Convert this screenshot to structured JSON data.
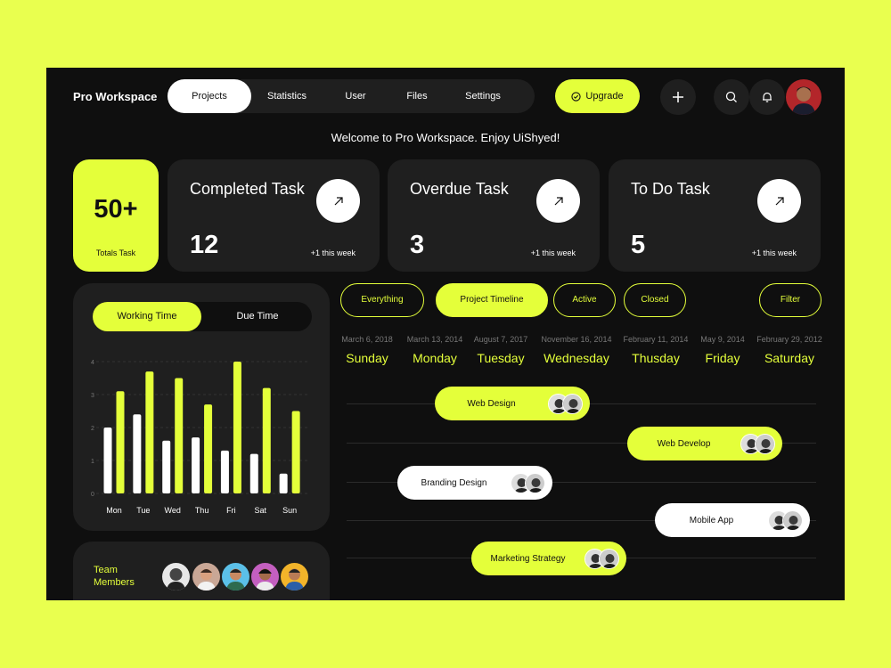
{
  "app": {
    "brand": "Pro Workspace",
    "welcome": "Welcome to Pro Workspace. Enjoy UiShyed!"
  },
  "nav": {
    "items": [
      "Projects",
      "Statistics",
      "User",
      "Files",
      "Settings"
    ],
    "active": "Projects"
  },
  "actions": {
    "upgrade": "Upgrade"
  },
  "summary": {
    "total_value": "50+",
    "total_label": "Totals Task"
  },
  "stats": [
    {
      "title": "Completed Task",
      "value": "12",
      "week": "+1 this week"
    },
    {
      "title": "Overdue Task",
      "value": "3",
      "week": "+1 this week"
    },
    {
      "title": "To Do Task",
      "value": "5",
      "week": "+1 this week"
    }
  ],
  "chart_toggle": {
    "on": "Working Time",
    "off": "Due Time"
  },
  "chart_data": {
    "type": "bar",
    "categories": [
      "Mon",
      "Tue",
      "Wed",
      "Thu",
      "Fri",
      "Sat",
      "Sun"
    ],
    "series": [
      {
        "values": [
          2.0,
          2.4,
          1.6,
          1.7,
          1.3,
          1.2,
          0.6
        ]
      },
      {
        "values": [
          3.1,
          3.7,
          3.5,
          2.7,
          4.0,
          3.2,
          2.5
        ]
      }
    ],
    "ylim": [
      0,
      4
    ],
    "yticks": [
      "0",
      "1",
      "2",
      "3",
      "4"
    ],
    "grid": true,
    "colors": {
      "primary": "#e4ff3a",
      "secondary": "#ffffff"
    }
  },
  "team": {
    "label": "Team Members"
  },
  "filters": [
    "Everything",
    "Project Timeline",
    "Active",
    "Closed",
    "Filter"
  ],
  "active_filter": "Project Timeline",
  "days": [
    {
      "date": "March 6, 2018",
      "name": "Sunday"
    },
    {
      "date": "March 13, 2014",
      "name": "Monday"
    },
    {
      "date": "August 7, 2017",
      "name": "Tuesday"
    },
    {
      "date": "November 16, 2014",
      "name": "Wednesday"
    },
    {
      "date": "February 11, 2014",
      "name": "Thusday"
    },
    {
      "date": "May 9, 2014",
      "name": "Friday"
    },
    {
      "date": "February 29, 2012",
      "name": "Saturday"
    }
  ],
  "timeline_tasks": [
    {
      "label": "Web Design",
      "style": "yellow"
    },
    {
      "label": "Web Develop",
      "style": "yellow"
    },
    {
      "label": "Branding Design",
      "style": "white"
    },
    {
      "label": "Mobile App",
      "style": "white"
    },
    {
      "label": "Marketing Strategy",
      "style": "yellow"
    }
  ],
  "colors": {
    "accent": "#e4ff3a",
    "background": "#0f0f0f",
    "card": "#1f1f1f"
  }
}
